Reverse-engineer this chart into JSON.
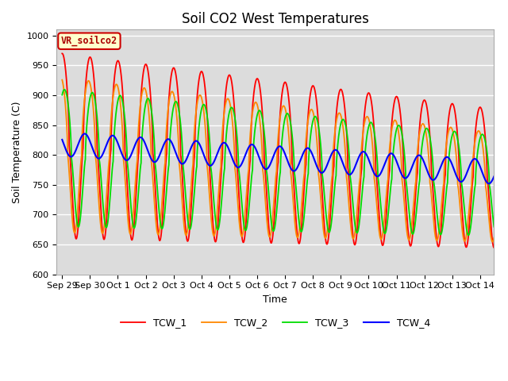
{
  "title": "Soil CO2 West Temperatures",
  "xlabel": "Time",
  "ylabel": "Soil Temperature (C)",
  "ylim": [
    600,
    1010
  ],
  "yticks": [
    600,
    650,
    700,
    750,
    800,
    850,
    900,
    950,
    1000
  ],
  "bg_color": "#dcdcdc",
  "fig_color": "#ffffff",
  "annotation_text": "VR_soilco2",
  "annotation_bg": "#ffffcc",
  "annotation_border": "#cc0000",
  "lines": [
    {
      "label": "TCW_1",
      "color": "#ff0000",
      "lw": 1.3
    },
    {
      "label": "TCW_2",
      "color": "#ff8800",
      "lw": 1.3
    },
    {
      "label": "TCW_3",
      "color": "#00dd00",
      "lw": 1.3
    },
    {
      "label": "TCW_4",
      "color": "#0000ff",
      "lw": 1.5
    }
  ],
  "date_labels": [
    "Sep 29",
    "Sep 30",
    "Oct 1",
    "Oct 2",
    "Oct 3",
    "Oct 4",
    "Oct 5",
    "Oct 6",
    "Oct 7",
    "Oct 8",
    "Oct 9",
    "Oct 10",
    "Oct 11",
    "Oct 12",
    "Oct 13",
    "Oct 14"
  ],
  "n_days": 15.5
}
